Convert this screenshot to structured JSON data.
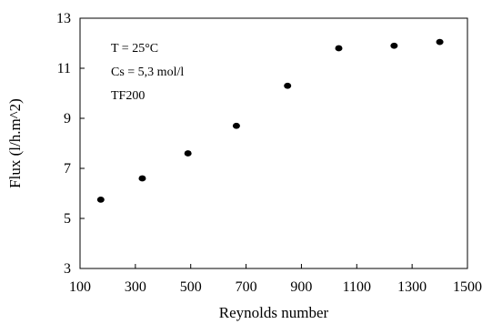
{
  "chart_data": {
    "type": "scatter",
    "title": "",
    "xlabel": "Reynolds number",
    "ylabel": "Flux (l/h.m^2)",
    "xlim": [
      100,
      1500
    ],
    "ylim": [
      3,
      13
    ],
    "xticks": [
      100,
      300,
      500,
      700,
      900,
      1100,
      1300,
      1500
    ],
    "yticks": [
      3,
      5,
      7,
      9,
      11,
      13
    ],
    "x_tick_labels": [
      "100",
      "300",
      "500",
      "700",
      "900",
      "1100",
      "1300",
      "1500"
    ],
    "y_tick_labels": [
      "3",
      "5",
      "7",
      "9",
      "11",
      "13"
    ],
    "annotations": [
      "T = 25°C",
      "Cs = 5,3 mol/l",
      "TF200"
    ],
    "grid": false,
    "legend": "none",
    "series": [
      {
        "points": [
          {
            "x": 175,
            "y": 5.75
          },
          {
            "x": 325,
            "y": 6.6
          },
          {
            "x": 490,
            "y": 7.6
          },
          {
            "x": 665,
            "y": 8.7
          },
          {
            "x": 850,
            "y": 10.3
          },
          {
            "x": 1035,
            "y": 11.8
          },
          {
            "x": 1235,
            "y": 11.9
          },
          {
            "x": 1400,
            "y": 12.05
          }
        ]
      }
    ],
    "colors": {
      "axis": "#000000",
      "marker": "#000000",
      "background": "#ffffff"
    }
  }
}
